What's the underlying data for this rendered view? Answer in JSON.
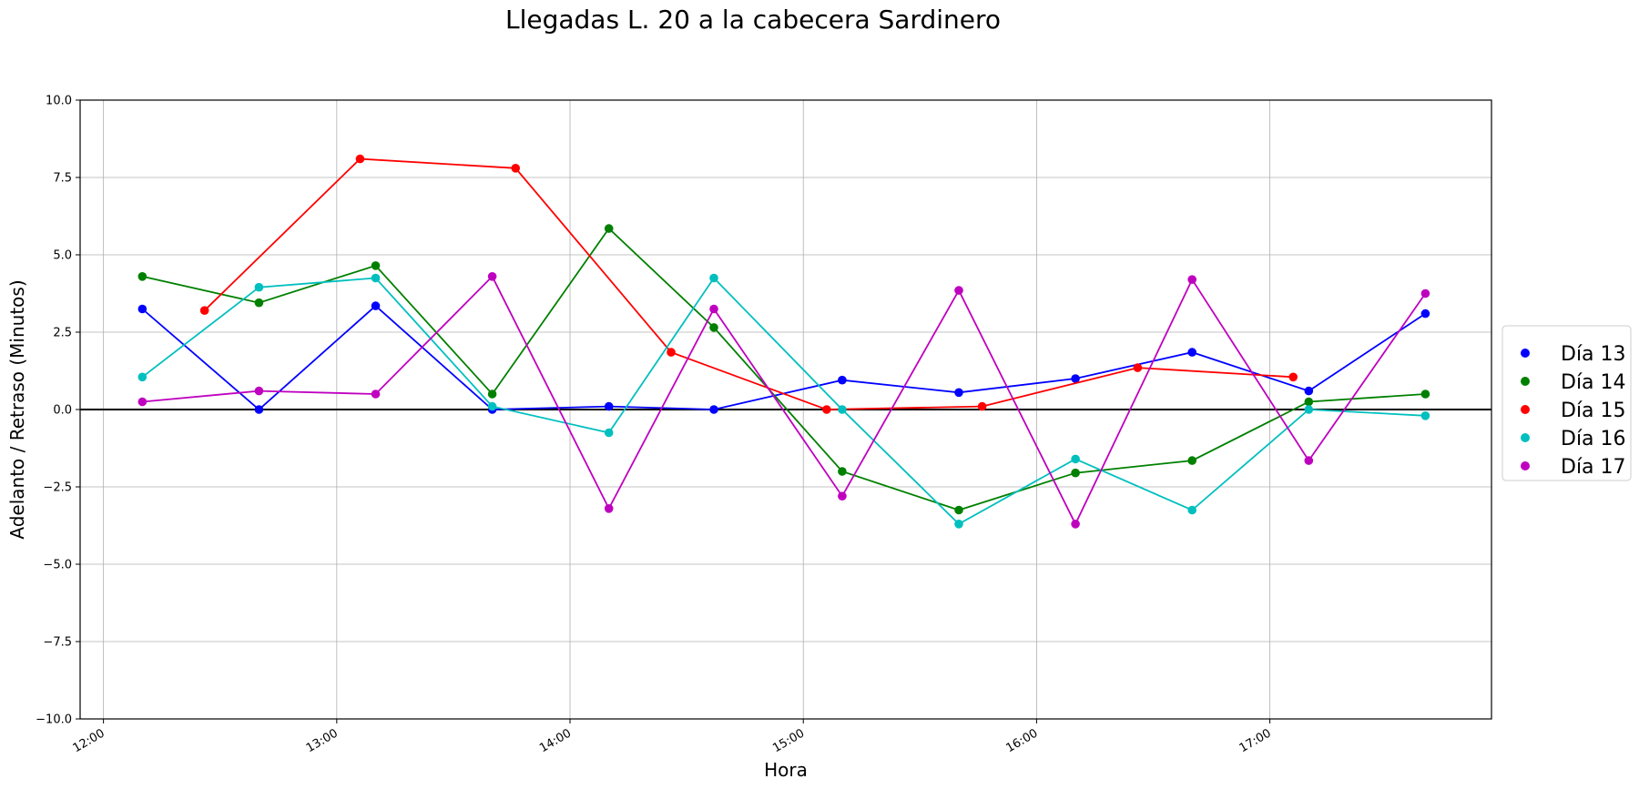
{
  "chart_data": {
    "type": "line",
    "title": "Llegadas L. 20 a la cabecera Sardinero",
    "xlabel": "Hora",
    "ylabel": "Adelanto / Retraso (Minutos)",
    "xlim": [
      "11:54",
      "17:57"
    ],
    "ylim": [
      -10,
      10
    ],
    "x_ticks": [
      "12:00",
      "13:00",
      "14:00",
      "15:00",
      "16:00",
      "17:00"
    ],
    "y_ticks": [
      -10.0,
      -7.5,
      -5.0,
      -2.5,
      0.0,
      2.5,
      5.0,
      7.5,
      10.0
    ],
    "grid": true,
    "zero_line": true,
    "legend_position": "right, outside plot",
    "series": [
      {
        "name": "Día 13",
        "color": "#0000ff",
        "x": [
          "12:10",
          "12:40",
          "13:10",
          "13:40",
          "14:10",
          "14:37",
          "15:10",
          "15:40",
          "16:10",
          "16:40",
          "17:10",
          "17:40"
        ],
        "y": [
          3.25,
          0.0,
          3.35,
          0.0,
          0.1,
          0.0,
          0.95,
          0.55,
          1.0,
          1.85,
          0.6,
          3.1
        ]
      },
      {
        "name": "Día 14",
        "color": "#008000",
        "x": [
          "12:10",
          "12:40",
          "13:10",
          "13:40",
          "14:10",
          "14:37",
          "15:10",
          "15:40",
          "16:10",
          "16:40",
          "17:10",
          "17:40"
        ],
        "y": [
          4.3,
          3.45,
          4.65,
          0.5,
          5.85,
          2.65,
          -2.0,
          -3.25,
          -2.05,
          -1.65,
          0.25,
          0.5
        ]
      },
      {
        "name": "Día 15",
        "color": "#ff0000",
        "x": [
          "12:26",
          "13:06",
          "13:46",
          "14:26",
          "15:06",
          "15:46",
          "16:26",
          "17:06"
        ],
        "y": [
          3.2,
          8.1,
          7.8,
          1.85,
          0.0,
          0.1,
          1.35,
          1.05
        ]
      },
      {
        "name": "Día 16",
        "color": "#00bfbf",
        "x": [
          "12:10",
          "12:40",
          "13:10",
          "13:40",
          "14:10",
          "14:37",
          "15:10",
          "15:40",
          "16:10",
          "16:40",
          "17:10",
          "17:40"
        ],
        "y": [
          1.05,
          3.95,
          4.25,
          0.1,
          -0.75,
          4.25,
          0.0,
          -3.7,
          -1.6,
          -3.25,
          0.0,
          -0.2
        ]
      },
      {
        "name": "Día 17",
        "color": "#bf00bf",
        "x": [
          "12:10",
          "12:40",
          "13:10",
          "13:40",
          "14:10",
          "14:37",
          "15:10",
          "15:40",
          "16:10",
          "16:40",
          "17:10",
          "17:40"
        ],
        "y": [
          0.25,
          0.6,
          0.5,
          4.3,
          -3.2,
          3.25,
          -2.8,
          3.85,
          -3.7,
          4.2,
          -1.65,
          3.75
        ]
      }
    ]
  }
}
